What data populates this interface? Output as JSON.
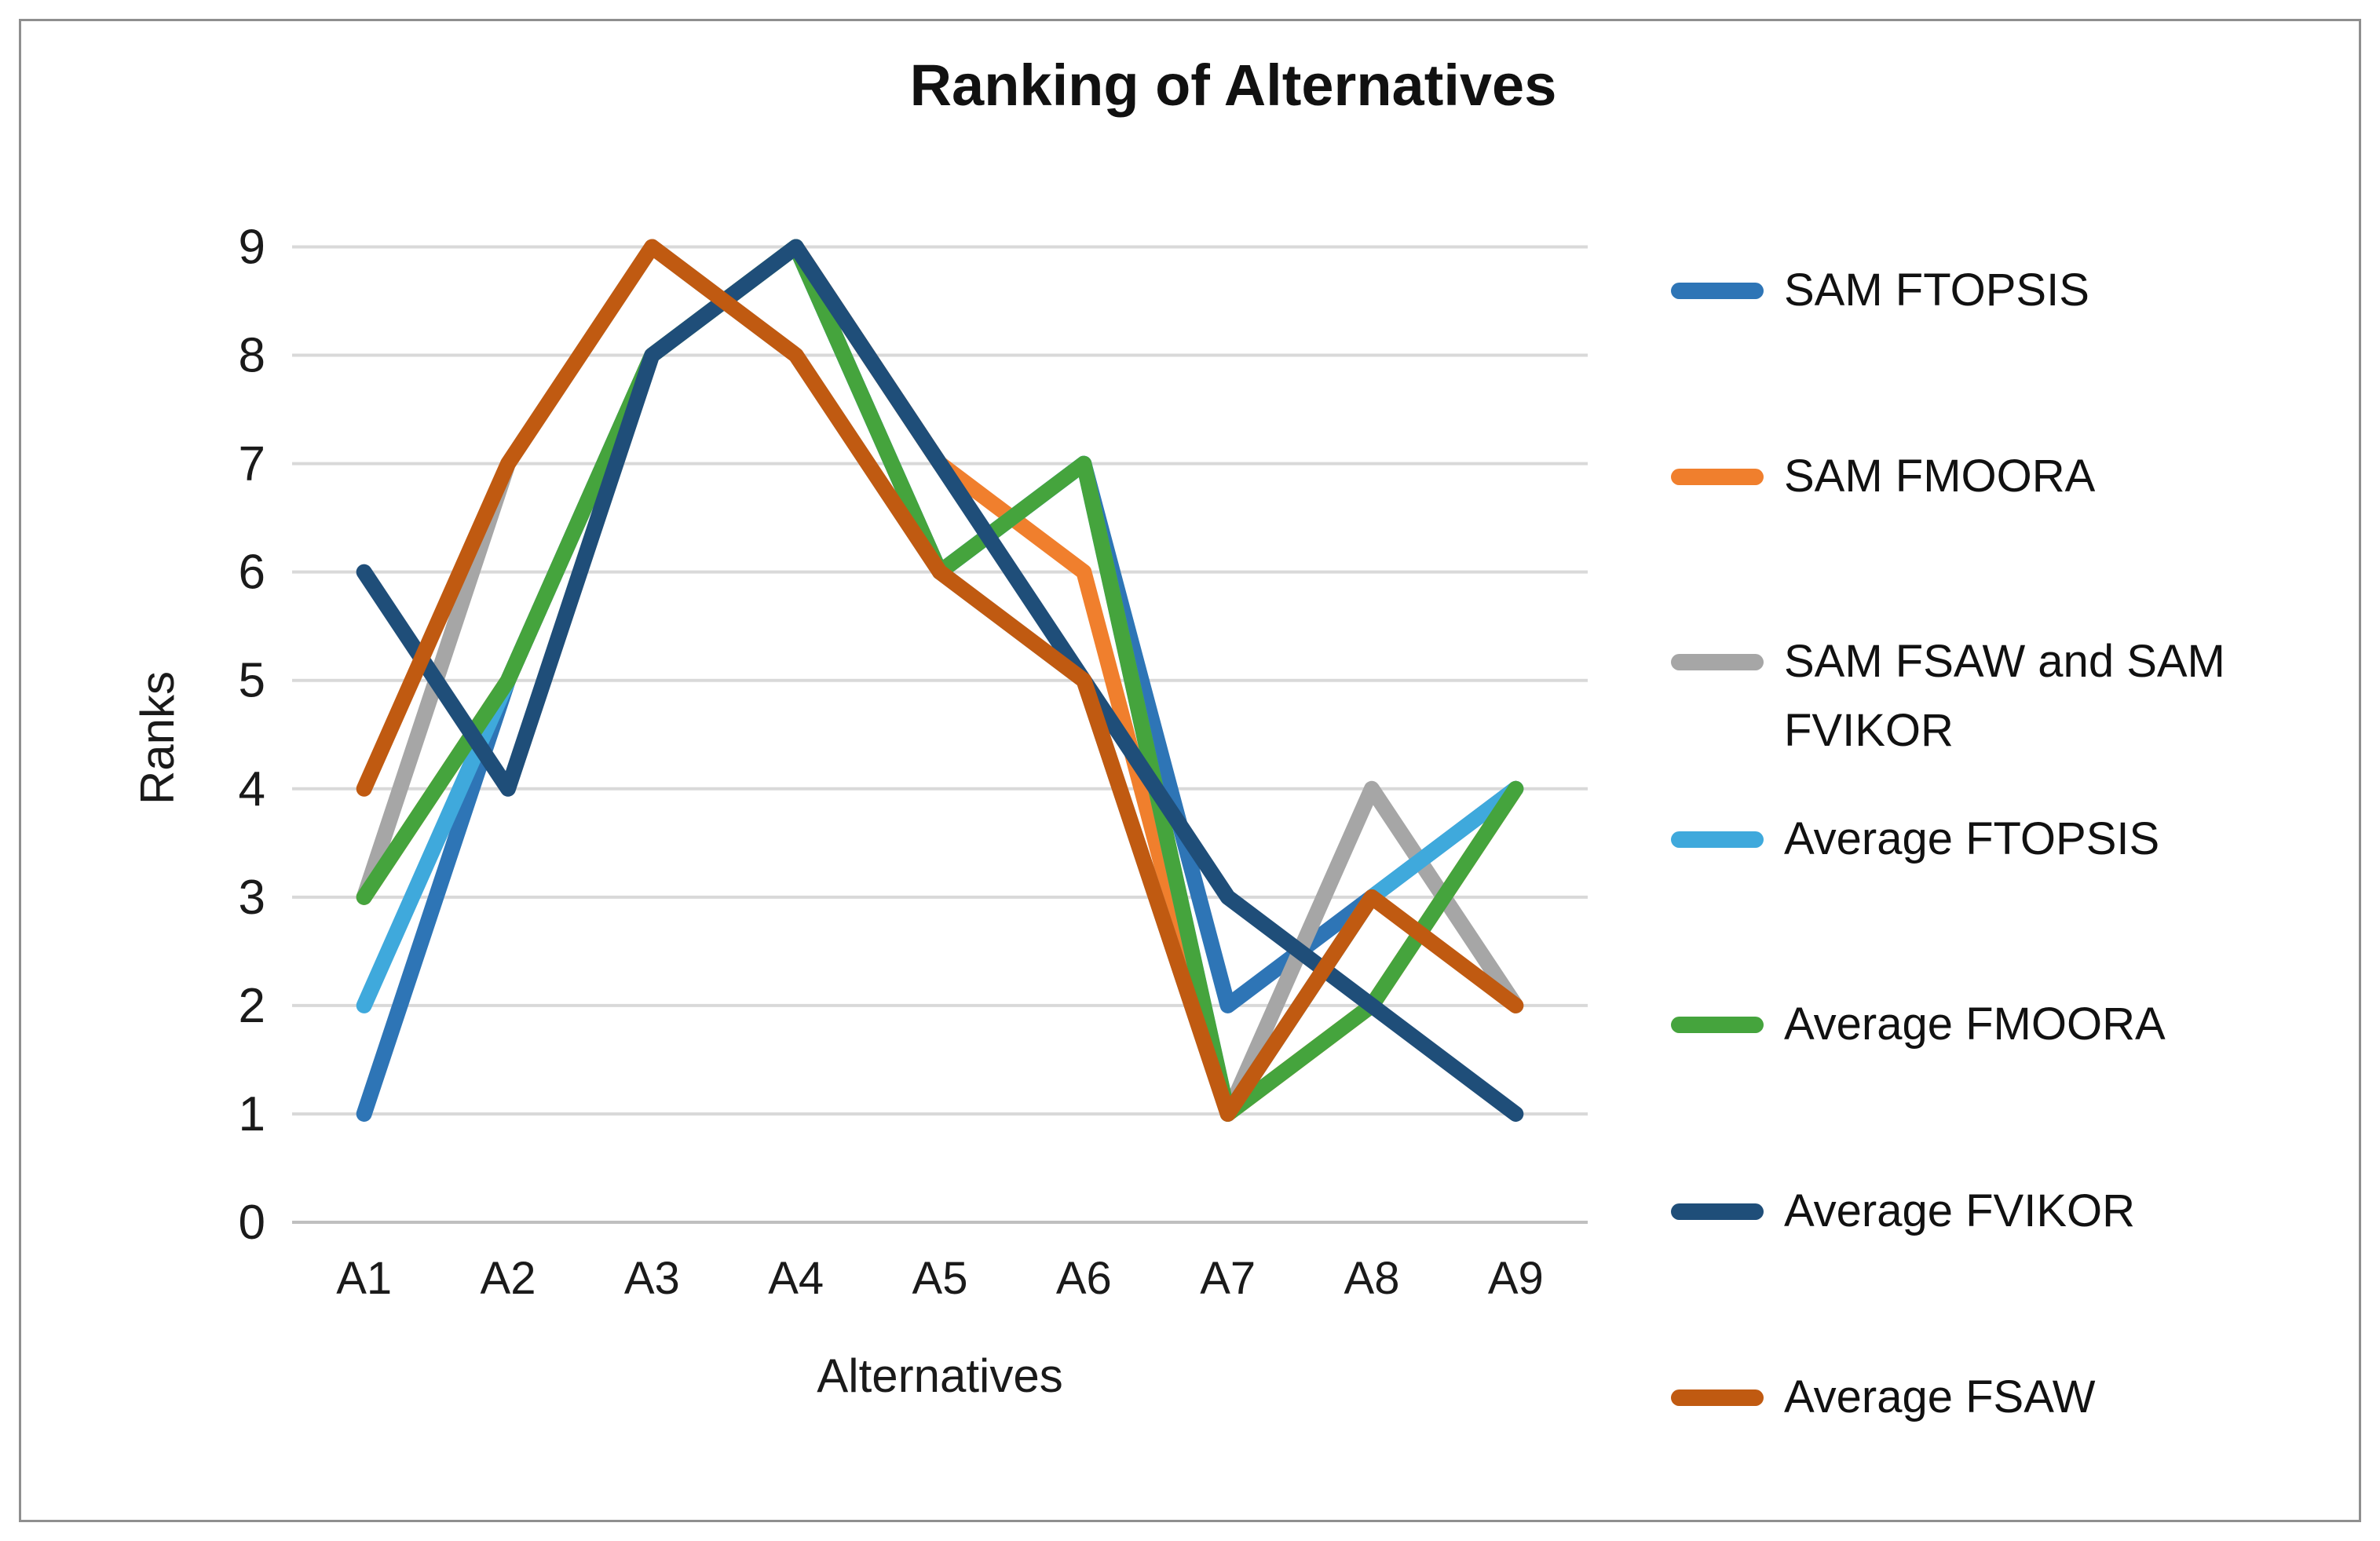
{
  "title": "Ranking of Alternatives",
  "chart_data": {
    "type": "line",
    "title": "Ranking of Alternatives",
    "xlabel": "Alternatives",
    "ylabel": "Ranks",
    "categories": [
      "A1",
      "A2",
      "A3",
      "A4",
      "A5",
      "A6",
      "A7",
      "A8",
      "A9"
    ],
    "y_ticks": [
      0,
      1,
      2,
      3,
      4,
      5,
      6,
      7,
      8,
      9
    ],
    "ylim": [
      0,
      9
    ],
    "grid": true,
    "legend_position": "right",
    "series": [
      {
        "name": "SAM FTOPSIS",
        "color": "#2E75B6",
        "values": [
          1,
          5,
          8,
          9,
          6,
          7,
          2,
          3,
          4
        ]
      },
      {
        "name": "SAM FMOORA",
        "color": "#F07F2D",
        "values": [
          3,
          5,
          8,
          9,
          7,
          6,
          1,
          2,
          4
        ]
      },
      {
        "name": "SAM FSAW and SAM FVIKOR",
        "color": "#A6A6A6",
        "values": [
          3,
          7,
          9,
          8,
          6,
          5,
          1,
          4,
          2
        ]
      },
      {
        "name": "Average FTOPSIS",
        "color": "#3FA9DC",
        "values": [
          2,
          5,
          8,
          9,
          6,
          7,
          1,
          3,
          4
        ]
      },
      {
        "name": "Average FMOORA",
        "color": "#45A43D",
        "values": [
          3,
          5,
          8,
          9,
          6,
          7,
          1,
          2,
          4
        ]
      },
      {
        "name": "Average FVIKOR",
        "color": "#1F4E79",
        "values": [
          6,
          4,
          8,
          9,
          7,
          5,
          3,
          2,
          1
        ]
      },
      {
        "name": "Average FSAW",
        "color": "#C05A11",
        "values": [
          4,
          7,
          9,
          8,
          6,
          5,
          1,
          3,
          2
        ]
      }
    ],
    "gridline_color": "#D9D9D9",
    "axis_line_color": "#BFBFBF",
    "tick_label_color": "#1a1a1a"
  }
}
